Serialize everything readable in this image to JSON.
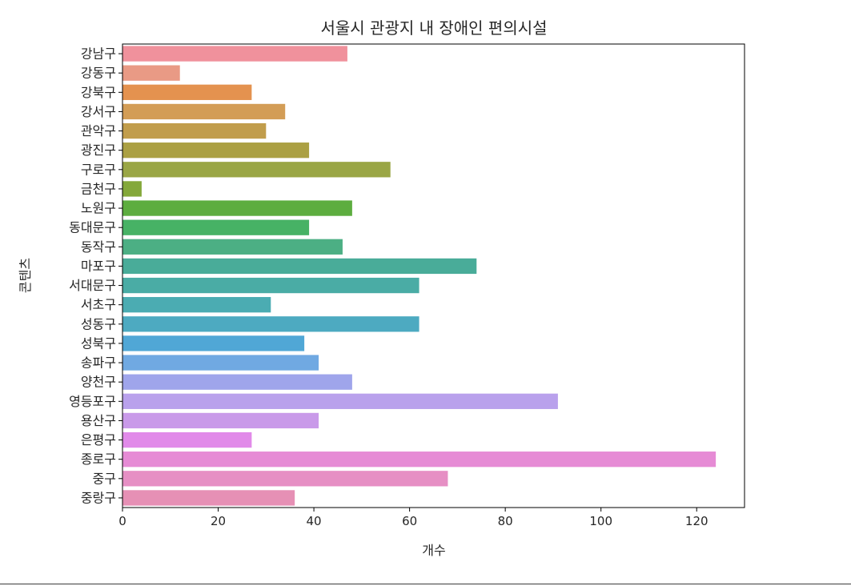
{
  "chart_data": {
    "type": "bar",
    "orientation": "horizontal",
    "title": "서울시 관광지 내 장애인 편의시설",
    "xlabel": "개수",
    "ylabel": "콘텐츠",
    "xlim": [
      0,
      130
    ],
    "xticks": [
      0,
      20,
      40,
      60,
      80,
      100,
      120
    ],
    "grid": false,
    "categories": [
      "강남구",
      "강동구",
      "강북구",
      "강서구",
      "관악구",
      "광진구",
      "구로구",
      "금천구",
      "노원구",
      "동대문구",
      "동작구",
      "마포구",
      "서대문구",
      "서초구",
      "성동구",
      "성북구",
      "송파구",
      "양천구",
      "영등포구",
      "용산구",
      "은평구",
      "종로구",
      "중구",
      "중랑구"
    ],
    "values": [
      47,
      12,
      27,
      34,
      30,
      39,
      56,
      4,
      48,
      39,
      46,
      74,
      62,
      31,
      62,
      38,
      41,
      48,
      91,
      41,
      27,
      124,
      68,
      36
    ],
    "colors": [
      "#f0919c",
      "#e99a85",
      "#e4924f",
      "#d39d56",
      "#c19d4c",
      "#aba043",
      "#9aa645",
      "#84a83a",
      "#5dad3f",
      "#47b265",
      "#4caf84",
      "#49ac99",
      "#4aaca5",
      "#4bacb2",
      "#4daac1",
      "#50a7d6",
      "#70a9e2",
      "#9fa5eb",
      "#b9a1ec",
      "#c99ae9",
      "#e18ae9",
      "#e68bd5",
      "#e68fc4",
      "#e690b5"
    ]
  }
}
